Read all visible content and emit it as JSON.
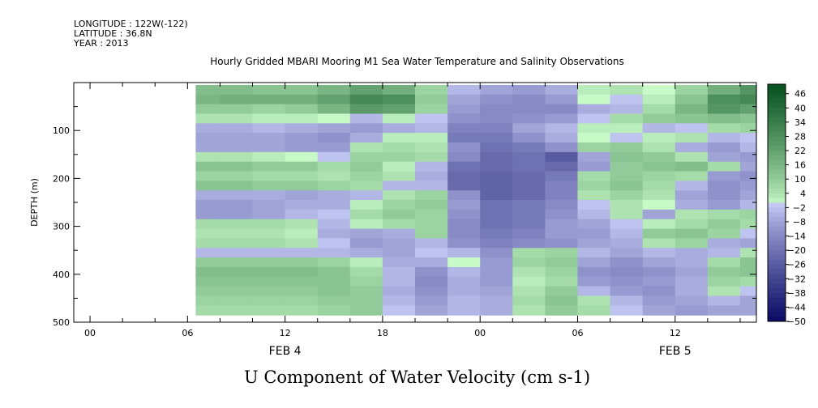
{
  "header": {
    "longitude": "LONGITUDE : 122W(-122)",
    "latitude": "LATITUDE : 36.8N",
    "year": "YEAR : 2013"
  },
  "plot_title": "Hourly Gridded MBARI Mooring M1 Sea Water Temperature and Salinity Observations",
  "chart_title": "U Component of Water Velocity (cm s-1)",
  "chart_data": {
    "type": "heatmap",
    "title": "U Component of Water Velocity (cm s-1)",
    "xlabel": "",
    "ylabel": "DEPTH (m)",
    "x_ticks": [
      {
        "hour": 0,
        "label": "00"
      },
      {
        "hour": 6,
        "label": "06"
      },
      {
        "hour": 12,
        "label": "12"
      },
      {
        "hour": 18,
        "label": "18"
      },
      {
        "hour": 24,
        "label": "00"
      },
      {
        "hour": 30,
        "label": "06"
      },
      {
        "hour": 36,
        "label": "12"
      }
    ],
    "x_range_hours": [
      -1,
      41
    ],
    "date_labels": [
      {
        "hour": 12,
        "label": "FEB  4"
      },
      {
        "hour": 36,
        "label": "FEB  5"
      }
    ],
    "data_start_hour": 6.5,
    "depth_range": [
      500,
      0
    ],
    "y_ticks": [
      100,
      200,
      300,
      400,
      500
    ],
    "depths": [
      15,
      35,
      55,
      75,
      95,
      115,
      135,
      155,
      175,
      195,
      215,
      235,
      255,
      275,
      295,
      315,
      335,
      355,
      375,
      395,
      415,
      435,
      455,
      475
    ],
    "hours": [
      7,
      9,
      11,
      13,
      15,
      17,
      19,
      21,
      23,
      25,
      27,
      29,
      31,
      33,
      35,
      37,
      39,
      41
    ],
    "values": [
      [
        14,
        14,
        12,
        12,
        16,
        22,
        18,
        8,
        -4,
        -8,
        -10,
        -6,
        2,
        4,
        0,
        8,
        18,
        26
      ],
      [
        16,
        18,
        18,
        18,
        22,
        30,
        28,
        10,
        -8,
        -12,
        -14,
        -10,
        0,
        -2,
        2,
        12,
        28,
        30
      ],
      [
        10,
        10,
        8,
        10,
        16,
        24,
        22,
        8,
        -10,
        -14,
        -14,
        -14,
        -6,
        -4,
        6,
        16,
        26,
        22
      ],
      [
        4,
        4,
        2,
        2,
        0,
        -4,
        2,
        -2,
        -12,
        -14,
        -12,
        -10,
        -2,
        6,
        10,
        12,
        14,
        12
      ],
      [
        -6,
        -6,
        -4,
        -6,
        -8,
        -10,
        -6,
        -4,
        -16,
        -16,
        -8,
        -4,
        2,
        2,
        -4,
        -2,
        6,
        8
      ],
      [
        -8,
        -8,
        -8,
        -10,
        -12,
        -6,
        2,
        2,
        -18,
        -18,
        -12,
        -6,
        0,
        -2,
        2,
        4,
        -4,
        -2
      ],
      [
        -8,
        -8,
        -8,
        -10,
        -10,
        4,
        6,
        4,
        -12,
        -20,
        -18,
        -12,
        8,
        10,
        4,
        -6,
        -10,
        -4
      ],
      [
        4,
        4,
        2,
        0,
        -2,
        8,
        8,
        6,
        -14,
        -22,
        -20,
        -26,
        -8,
        12,
        10,
        4,
        -8,
        -10
      ],
      [
        12,
        12,
        10,
        10,
        6,
        10,
        2,
        -4,
        -20,
        -22,
        -20,
        -22,
        -10,
        10,
        12,
        14,
        6,
        -8
      ],
      [
        8,
        8,
        6,
        6,
        4,
        8,
        4,
        -6,
        -22,
        -24,
        -22,
        -18,
        6,
        10,
        8,
        6,
        -10,
        -12
      ],
      [
        12,
        12,
        10,
        10,
        8,
        6,
        -4,
        -4,
        -22,
        -24,
        -22,
        -16,
        8,
        12,
        6,
        -4,
        -12,
        -10
      ],
      [
        -6,
        -6,
        -6,
        -8,
        -6,
        -4,
        4,
        8,
        -12,
        -24,
        -22,
        -16,
        4,
        8,
        4,
        -8,
        -12,
        -8
      ],
      [
        -10,
        -10,
        -8,
        -6,
        -6,
        2,
        8,
        10,
        -10,
        -20,
        -18,
        -14,
        -2,
        4,
        0,
        -6,
        -10,
        -4
      ],
      [
        -10,
        -10,
        -8,
        -4,
        -2,
        6,
        10,
        8,
        -12,
        -20,
        -18,
        -12,
        -4,
        4,
        -8,
        4,
        6,
        8
      ],
      [
        6,
        6,
        6,
        4,
        -4,
        2,
        6,
        8,
        -14,
        -20,
        -18,
        -10,
        -8,
        -2,
        2,
        6,
        10,
        6
      ],
      [
        4,
        4,
        4,
        2,
        -6,
        -8,
        -6,
        8,
        -14,
        -18,
        -16,
        -10,
        -10,
        -4,
        10,
        12,
        8,
        -2
      ],
      [
        6,
        6,
        6,
        4,
        -2,
        -10,
        -8,
        -4,
        -12,
        -16,
        -14,
        -12,
        -8,
        -6,
        4,
        8,
        -6,
        -8
      ],
      [
        -4,
        -4,
        -4,
        -4,
        -4,
        -6,
        -8,
        -2,
        -4,
        -12,
        6,
        8,
        -4,
        -8,
        -4,
        -6,
        -4,
        4
      ],
      [
        10,
        10,
        10,
        10,
        8,
        2,
        -6,
        -6,
        0,
        -10,
        8,
        10,
        -8,
        -12,
        -8,
        -6,
        6,
        12
      ],
      [
        14,
        14,
        14,
        14,
        12,
        6,
        -4,
        -12,
        -4,
        -10,
        4,
        8,
        -12,
        -14,
        -12,
        -8,
        10,
        12
      ],
      [
        12,
        12,
        12,
        12,
        12,
        8,
        -4,
        -14,
        -6,
        -10,
        2,
        6,
        -10,
        -12,
        -10,
        -6,
        8,
        6
      ],
      [
        10,
        10,
        10,
        10,
        12,
        10,
        -6,
        -12,
        -6,
        -8,
        4,
        10,
        -4,
        -10,
        -12,
        -6,
        4,
        -2
      ],
      [
        8,
        8,
        8,
        8,
        10,
        10,
        -4,
        -10,
        -4,
        -6,
        6,
        12,
        4,
        -4,
        -10,
        -8,
        -4,
        -8
      ],
      [
        6,
        6,
        6,
        6,
        8,
        10,
        -2,
        -8,
        -4,
        -6,
        4,
        10,
        6,
        -2,
        -8,
        -10,
        -8,
        -8
      ]
    ],
    "colorbar": {
      "levels": [
        46,
        40,
        34,
        28,
        22,
        16,
        10,
        4,
        -2,
        -8,
        -14,
        -20,
        -26,
        -32,
        -38,
        -44,
        -50
      ],
      "min": -50,
      "max": 50,
      "step": 2
    }
  }
}
